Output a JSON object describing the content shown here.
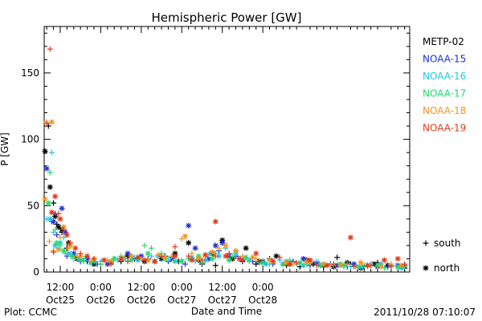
{
  "chart_data": {
    "type": "scatter",
    "title": "Hemispheric Power [GW]",
    "xlabel": "Date and Time",
    "ylabel": "P [GW]",
    "x_unit": "hours from 2011-10-24 00:00",
    "xlim": [
      7.25,
      115.5
    ],
    "ylim": [
      0,
      185
    ],
    "x_ticks": [
      {
        "value": 12,
        "time": "12:00",
        "date": "Oct25"
      },
      {
        "value": 24,
        "time": "0:00",
        "date": "Oct26"
      },
      {
        "value": 36,
        "time": "12:00",
        "date": "Oct26"
      },
      {
        "value": 48,
        "time": "0:00",
        "date": "Oct27"
      },
      {
        "value": 60,
        "time": "12:00",
        "date": "Oct27"
      },
      {
        "value": 72,
        "time": "0:00",
        "date": "Oct28"
      }
    ],
    "y_ticks": [
      {
        "value": 0,
        "label": "0"
      },
      {
        "value": 50,
        "label": "50"
      },
      {
        "value": 100,
        "label": "100"
      },
      {
        "value": 150,
        "label": "150"
      }
    ],
    "legend_position": "right",
    "markers": [
      {
        "symbol": "+",
        "label": "south"
      },
      {
        "symbol": "*",
        "label": "north"
      }
    ],
    "series": [
      {
        "name": "METP-02",
        "color": "#000000",
        "south": [
          [
            8.5,
            110
          ],
          [
            10,
            52
          ],
          [
            11,
            36
          ],
          [
            12.5,
            30
          ],
          [
            14,
            18
          ],
          [
            16,
            12
          ],
          [
            20,
            8
          ],
          [
            24,
            6
          ],
          [
            30,
            8
          ],
          [
            34,
            10
          ],
          [
            38,
            9
          ],
          [
            43,
            12
          ],
          [
            47,
            8
          ],
          [
            50,
            10
          ],
          [
            54,
            6
          ],
          [
            58,
            5
          ],
          [
            62,
            12
          ],
          [
            66,
            8
          ],
          [
            70,
            6
          ],
          [
            74,
            10
          ],
          [
            79,
            5
          ],
          [
            83,
            4
          ],
          [
            87,
            6
          ],
          [
            90,
            4
          ],
          [
            94,
            11
          ],
          [
            98,
            6
          ],
          [
            102,
            4
          ],
          [
            106,
            7
          ],
          [
            110,
            5
          ],
          [
            114,
            3
          ]
        ],
        "north": [
          [
            7.5,
            91
          ],
          [
            9,
            64
          ],
          [
            10.5,
            42
          ],
          [
            11.5,
            34
          ],
          [
            12.5,
            32
          ],
          [
            14.5,
            22
          ],
          [
            17,
            10
          ],
          [
            22,
            6
          ],
          [
            27,
            7
          ],
          [
            32,
            12
          ],
          [
            37,
            8
          ],
          [
            42,
            10
          ],
          [
            46,
            14
          ],
          [
            50,
            22
          ],
          [
            53,
            9
          ],
          [
            57,
            14
          ],
          [
            60,
            24
          ],
          [
            63,
            10
          ],
          [
            67,
            18
          ],
          [
            71,
            8
          ],
          [
            76,
            12
          ],
          [
            80,
            6
          ],
          [
            85,
            9
          ],
          [
            89,
            5
          ],
          [
            93,
            4
          ],
          [
            97,
            7
          ],
          [
            101,
            3
          ],
          [
            105,
            6
          ],
          [
            109,
            5
          ],
          [
            113,
            4
          ]
        ]
      },
      {
        "name": "NOAA-15",
        "color": "#1f2fd8",
        "south": [
          [
            9.5,
            38
          ],
          [
            10.5,
            44
          ],
          [
            11,
            28
          ],
          [
            14,
            12
          ],
          [
            18,
            8
          ],
          [
            23,
            6
          ],
          [
            28,
            10
          ],
          [
            33,
            12
          ],
          [
            38,
            10
          ],
          [
            44,
            8
          ],
          [
            49,
            6
          ],
          [
            55,
            9
          ],
          [
            59,
            16
          ],
          [
            64,
            12
          ],
          [
            69,
            8
          ],
          [
            75,
            6
          ],
          [
            81,
            8
          ],
          [
            86,
            5
          ],
          [
            92,
            6
          ],
          [
            97,
            4
          ],
          [
            103,
            5
          ],
          [
            109,
            4
          ],
          [
            114,
            5
          ]
        ],
        "north": [
          [
            8,
            78
          ],
          [
            10,
            38
          ],
          [
            12.5,
            48
          ],
          [
            13.5,
            30
          ],
          [
            16,
            14
          ],
          [
            20,
            10
          ],
          [
            26,
            6
          ],
          [
            32,
            14
          ],
          [
            36,
            12
          ],
          [
            40,
            8
          ],
          [
            45,
            10
          ],
          [
            50,
            35
          ],
          [
            52,
            18
          ],
          [
            56,
            10
          ],
          [
            58,
            20
          ],
          [
            60,
            22
          ],
          [
            62,
            12
          ],
          [
            66,
            9
          ],
          [
            72,
            8
          ],
          [
            78,
            6
          ],
          [
            84,
            10
          ],
          [
            88,
            7
          ],
          [
            94,
            5
          ],
          [
            99,
            6
          ],
          [
            106,
            4
          ],
          [
            112,
            5
          ]
        ]
      },
      {
        "name": "NOAA-16",
        "color": "#22c4e8",
        "south": [
          [
            8,
            40
          ],
          [
            9.5,
            90
          ],
          [
            10,
            30
          ],
          [
            11.5,
            18
          ],
          [
            13,
            26
          ],
          [
            15,
            14
          ],
          [
            19,
            10
          ],
          [
            24,
            8
          ],
          [
            29,
            9
          ],
          [
            34,
            11
          ],
          [
            39,
            12
          ],
          [
            44,
            10
          ],
          [
            48,
            9
          ],
          [
            52,
            8
          ],
          [
            56,
            13
          ],
          [
            61,
            18
          ],
          [
            66,
            10
          ],
          [
            71,
            7
          ],
          [
            77,
            9
          ],
          [
            82,
            6
          ],
          [
            88,
            8
          ],
          [
            93,
            5
          ],
          [
            98,
            4
          ],
          [
            104,
            6
          ],
          [
            110,
            5
          ]
        ],
        "north": [
          [
            9,
            40
          ],
          [
            10.5,
            20
          ],
          [
            12,
            22
          ],
          [
            14.5,
            14
          ],
          [
            17.5,
            10
          ],
          [
            21,
            7
          ],
          [
            27,
            8
          ],
          [
            31,
            10
          ],
          [
            35,
            9
          ],
          [
            41,
            12
          ],
          [
            46,
            8
          ],
          [
            51,
            11
          ],
          [
            55,
            9
          ],
          [
            59,
            12
          ],
          [
            64,
            14
          ],
          [
            68,
            9
          ],
          [
            73,
            6
          ],
          [
            79,
            8
          ],
          [
            84,
            5
          ],
          [
            90,
            6
          ],
          [
            96,
            5
          ],
          [
            101,
            4
          ],
          [
            107,
            6
          ],
          [
            113,
            3
          ]
        ]
      },
      {
        "name": "NOAA-17",
        "color": "#26d86e",
        "south": [
          [
            9,
            75
          ],
          [
            10.5,
            32
          ],
          [
            12,
            20
          ],
          [
            13.5,
            14
          ],
          [
            16,
            10
          ],
          [
            19,
            8
          ],
          [
            24,
            6
          ],
          [
            30,
            12
          ],
          [
            37,
            20
          ],
          [
            39,
            18
          ],
          [
            42,
            14
          ],
          [
            46,
            9
          ],
          [
            50,
            10
          ],
          [
            54,
            7
          ],
          [
            58,
            14
          ],
          [
            63,
            12
          ],
          [
            68,
            8
          ],
          [
            74,
            6
          ],
          [
            80,
            9
          ],
          [
            85,
            6
          ],
          [
            91,
            5
          ],
          [
            96,
            4
          ],
          [
            102,
            5
          ],
          [
            108,
            3
          ],
          [
            114,
            4
          ]
        ],
        "north": [
          [
            8.5,
            52
          ],
          [
            11,
            22
          ],
          [
            13,
            16
          ],
          [
            15.5,
            12
          ],
          [
            18.5,
            9
          ],
          [
            22,
            8
          ],
          [
            28,
            10
          ],
          [
            33,
            9
          ],
          [
            38,
            14
          ],
          [
            43,
            10
          ],
          [
            48,
            8
          ],
          [
            53,
            12
          ],
          [
            57,
            10
          ],
          [
            62,
            9
          ],
          [
            67,
            11
          ],
          [
            72,
            7
          ],
          [
            78,
            6
          ],
          [
            83,
            7
          ],
          [
            89,
            5
          ],
          [
            95,
            6
          ],
          [
            100,
            4
          ],
          [
            106,
            5
          ],
          [
            112,
            4
          ]
        ]
      },
      {
        "name": "NOAA-18",
        "color": "#f0961e",
        "south": [
          [
            8,
            113
          ],
          [
            8.8,
            23
          ],
          [
            10,
            16
          ],
          [
            12,
            26
          ],
          [
            14.5,
            18
          ],
          [
            17,
            12
          ],
          [
            21,
            8
          ],
          [
            26,
            9
          ],
          [
            31,
            11
          ],
          [
            36,
            10
          ],
          [
            41,
            13
          ],
          [
            45,
            12
          ],
          [
            48,
            25
          ],
          [
            51,
            14
          ],
          [
            55,
            12
          ],
          [
            59,
            18
          ],
          [
            62,
            14
          ],
          [
            66,
            12
          ],
          [
            70,
            10
          ],
          [
            75,
            8
          ],
          [
            81,
            6
          ],
          [
            86,
            7
          ],
          [
            92,
            5
          ],
          [
            97,
            6
          ],
          [
            103,
            4
          ],
          [
            110,
            6
          ]
        ],
        "north": [
          [
            7.5,
            55
          ],
          [
            9.5,
            113
          ],
          [
            11.5,
            17
          ],
          [
            13,
            34
          ],
          [
            15,
            20
          ],
          [
            18,
            12
          ],
          [
            22,
            10
          ],
          [
            27,
            8
          ],
          [
            33,
            12
          ],
          [
            38,
            9
          ],
          [
            43,
            11
          ],
          [
            49,
            27
          ],
          [
            53,
            10
          ],
          [
            57,
            15
          ],
          [
            61,
            20
          ],
          [
            64,
            16
          ],
          [
            69,
            11
          ],
          [
            74,
            9
          ],
          [
            79,
            7
          ],
          [
            85,
            8
          ],
          [
            90,
            6
          ],
          [
            95,
            5
          ],
          [
            101,
            7
          ],
          [
            107,
            4
          ],
          [
            113,
            5
          ]
        ]
      },
      {
        "name": "NOAA-19",
        "color": "#e03a1a",
        "south": [
          [
            9,
            168
          ],
          [
            8,
            112
          ],
          [
            10,
            15
          ],
          [
            11.5,
            44
          ],
          [
            13,
            32
          ],
          [
            15,
            22
          ],
          [
            18,
            14
          ],
          [
            22,
            10
          ],
          [
            27,
            6
          ],
          [
            32,
            8
          ],
          [
            37,
            9
          ],
          [
            42,
            12
          ],
          [
            46,
            19
          ],
          [
            50,
            12
          ],
          [
            54,
            9
          ],
          [
            58,
            12
          ],
          [
            62,
            14
          ],
          [
            66,
            9
          ],
          [
            71,
            8
          ],
          [
            77,
            11
          ],
          [
            82,
            7
          ],
          [
            88,
            5
          ],
          [
            93,
            6
          ],
          [
            99,
            4
          ],
          [
            104,
            5
          ],
          [
            110,
            4
          ],
          [
            114,
            6
          ]
        ],
        "north": [
          [
            9.5,
            45
          ],
          [
            10.5,
            57
          ],
          [
            12,
            40
          ],
          [
            14,
            28
          ],
          [
            16.5,
            18
          ],
          [
            20,
            12
          ],
          [
            25,
            9
          ],
          [
            30,
            10
          ],
          [
            35,
            11
          ],
          [
            40,
            8
          ],
          [
            46,
            12
          ],
          [
            51,
            9
          ],
          [
            55,
            13
          ],
          [
            58,
            38
          ],
          [
            61,
            12
          ],
          [
            65,
            10
          ],
          [
            70,
            14
          ],
          [
            75,
            8
          ],
          [
            80,
            6
          ],
          [
            86,
            9
          ],
          [
            91,
            5
          ],
          [
            98,
            26
          ],
          [
            103,
            5
          ],
          [
            108,
            9
          ],
          [
            112,
            10
          ]
        ]
      }
    ]
  },
  "footer": {
    "left": "Plot: CCMC",
    "right": "2011/10/28 07:10:07"
  }
}
